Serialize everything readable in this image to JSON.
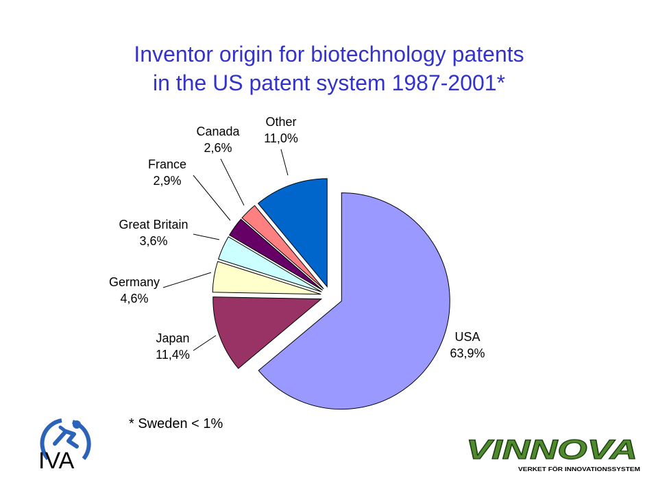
{
  "title_line1": "Inventor origin for biotechnology patents",
  "title_line2": "in the US patent system 1987-2001*",
  "footnote": "* Sweden < 1%",
  "logos": {
    "left": "IVA",
    "right": "VINNOVA",
    "right_tagline": "VERKET FÖR INNOVATIONSSYSTEM"
  },
  "colors": {
    "title": "#3333cc"
  },
  "chart_data": {
    "type": "pie",
    "title": "Inventor origin for biotechnology patents in the US patent system 1987-2001*",
    "slices": [
      {
        "label": "USA",
        "value": 63.9,
        "value_text": "63,9%",
        "color": "#9999ff"
      },
      {
        "label": "Japan",
        "value": 11.4,
        "value_text": "11,4%",
        "color": "#993366"
      },
      {
        "label": "Germany",
        "value": 4.6,
        "value_text": "4,6%",
        "color": "#ffffcc"
      },
      {
        "label": "Great Britain",
        "value": 3.6,
        "value_text": "3,6%",
        "color": "#ccffff"
      },
      {
        "label": "France",
        "value": 2.9,
        "value_text": "2,9%",
        "color": "#660066"
      },
      {
        "label": "Canada",
        "value": 2.6,
        "value_text": "2,6%",
        "color": "#ff8080"
      },
      {
        "label": "Other",
        "value": 11.0,
        "value_text": "11,0%",
        "color": "#0066cc"
      }
    ]
  }
}
